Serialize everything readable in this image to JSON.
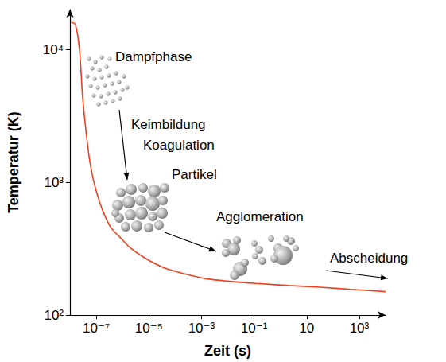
{
  "chart_data": {
    "type": "line",
    "x_label": "Zeit (s)",
    "y_label": "Temperatur (K)",
    "log": true,
    "grid": false,
    "xlim": [
      1e-08,
      10000
    ],
    "ylim": [
      100,
      20000
    ],
    "xticks": [
      {
        "value": 1e-07,
        "label": "10⁻⁷"
      },
      {
        "value": 1e-05,
        "label": "10⁻⁵"
      },
      {
        "value": 0.001,
        "label": "10⁻³"
      },
      {
        "value": 0.1,
        "label": "10⁻¹"
      },
      10,
      {
        "value": 1000,
        "label": "10³"
      }
    ],
    "yticks": [
      {
        "value": 100,
        "label": "10²"
      },
      {
        "value": 1000,
        "label": "10³"
      },
      {
        "value": 10000,
        "label": "10⁴"
      }
    ],
    "x": [
      1.1e-08,
      1.6e-08,
      2.3e-08,
      3e-08,
      4.1e-08,
      5.5e-08,
      7.6e-08,
      1.2e-07,
      1.9e-07,
      3.5e-07,
      7.8e-07,
      2e-06,
      6.3e-06,
      2e-05,
      5.2e-05,
      0.00043,
      0.0017,
      0.01,
      0.12,
      2,
      32,
      500,
      10000
    ],
    "values": [
      16000,
      15500,
      10000,
      4500,
      2400,
      1500,
      1060,
      760,
      590,
      460,
      387,
      320,
      273,
      240,
      222,
      198,
      187,
      180,
      173,
      167,
      162,
      156,
      150
    ],
    "color": "#f0401e",
    "annotations": [
      "Dampfphase",
      "Keimbildung",
      "Koagulation",
      "Partikel",
      "Agglomeration",
      "Abscheidung"
    ]
  }
}
